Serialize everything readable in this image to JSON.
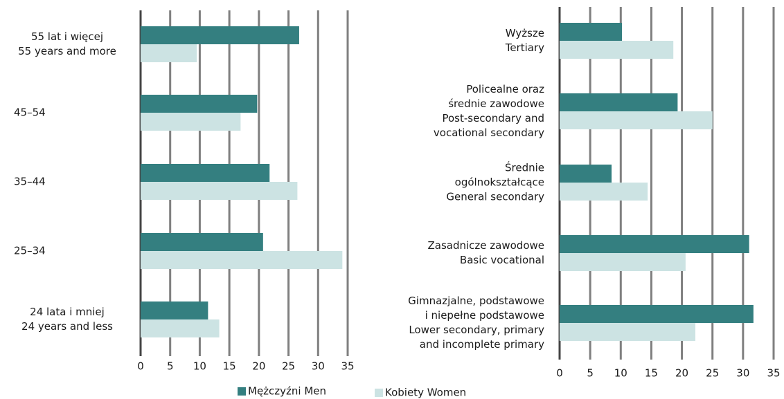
{
  "chart_data": [
    {
      "type": "bar",
      "categories": [
        [
          "55 lat i więcej",
          "55 years and more"
        ],
        [
          "45–54"
        ],
        [
          "35–44"
        ],
        [
          "25–34"
        ],
        [
          "24 lata i mniej",
          "24 years and less"
        ]
      ],
      "series": [
        {
          "name": "Mężczyźni  Men",
          "color": "#347f80",
          "values": [
            26.8,
            19.7,
            21.8,
            20.7,
            11.4
          ]
        },
        {
          "name": "Kobiety Women",
          "color": "#cce3e3",
          "values": [
            9.5,
            16.9,
            26.5,
            34.1,
            13.3
          ]
        }
      ],
      "xlim": [
        0,
        35
      ],
      "xticks": [
        0,
        5,
        10,
        15,
        20,
        25,
        30,
        35
      ],
      "grid": true
    },
    {
      "type": "bar",
      "categories": [
        [
          "Wyższe",
          "Tertiary"
        ],
        [
          "Policealne oraz",
          "średnie zawodowe",
          "Post-secondary and",
          "vocational secondary"
        ],
        [
          "Średnie",
          "ogólnokształcące",
          "General secondary"
        ],
        [
          "Zasadnicze zawodowe",
          "Basic vocational"
        ],
        [
          "Gimnazjalne, podstawowe",
          "i niepełne podstawowe",
          "Lower secondary, primary",
          "and incomplete primary"
        ]
      ],
      "series": [
        {
          "color": "#347f80",
          "values": [
            10.2,
            19.3,
            8.5,
            31.0,
            31.7
          ]
        },
        {
          "color": "#cce3e3",
          "values": [
            18.6,
            25.0,
            14.4,
            20.6,
            22.2
          ]
        }
      ],
      "xlim": [
        0,
        35
      ],
      "xticks": [
        0,
        5,
        10,
        15,
        20,
        25,
        30,
        35
      ],
      "grid": true
    }
  ]
}
